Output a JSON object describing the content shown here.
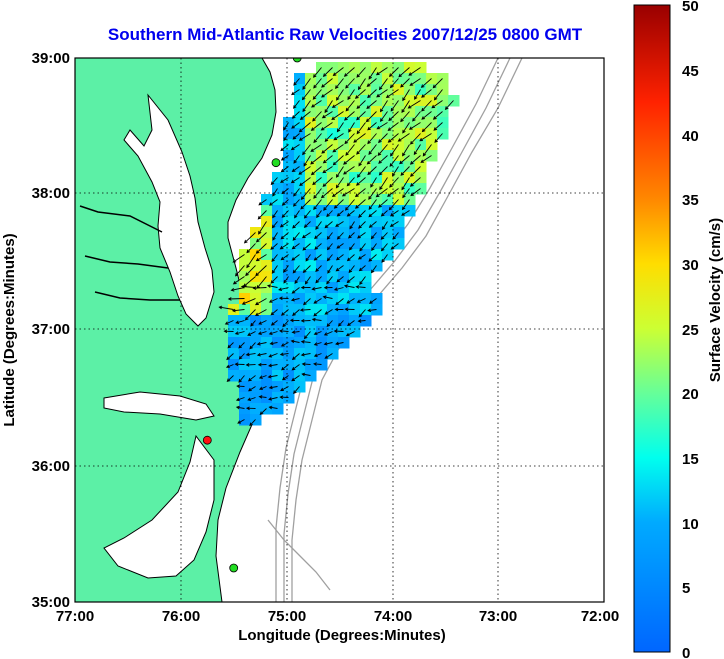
{
  "title": "Southern Mid-Atlantic Raw Velocities 2007/12/25 0800 GMT",
  "x_axis": {
    "label": "Longitude (Degrees:Minutes)",
    "ticks": [
      "77:00",
      "76:00",
      "75:00",
      "74:00",
      "73:00",
      "72:00"
    ]
  },
  "y_axis": {
    "label": "Latitude (Degrees:Minutes)",
    "ticks": [
      "39:00",
      "38:00",
      "37:00",
      "36:00",
      "35:00"
    ]
  },
  "colorbar": {
    "label": "Surface Velocity (cm/s)",
    "ticks": [
      "50",
      "45",
      "40",
      "35",
      "30",
      "25",
      "20",
      "15",
      "10",
      "5",
      "0"
    ],
    "min": 0,
    "max": 50,
    "colormap": "jet"
  },
  "colors": {
    "land": "#5cf0a6",
    "coastline": "#000000",
    "bathymetry": "#a0a0a0",
    "station_active": "#22dd22",
    "station_inactive": "#ff1111",
    "title": "#0000ee"
  },
  "map": {
    "lon_range": [
      -77,
      -72
    ],
    "lat_range": [
      35,
      39
    ],
    "grid": true,
    "stations": [
      {
        "status": "active",
        "lon": -74.9,
        "lat": 39.0
      },
      {
        "status": "active",
        "lon": -75.1,
        "lat": 38.23
      },
      {
        "status": "inactive",
        "lon": -75.75,
        "lat": 36.19
      },
      {
        "status": "active",
        "lon": -75.5,
        "lat": 35.25
      }
    ]
  }
}
